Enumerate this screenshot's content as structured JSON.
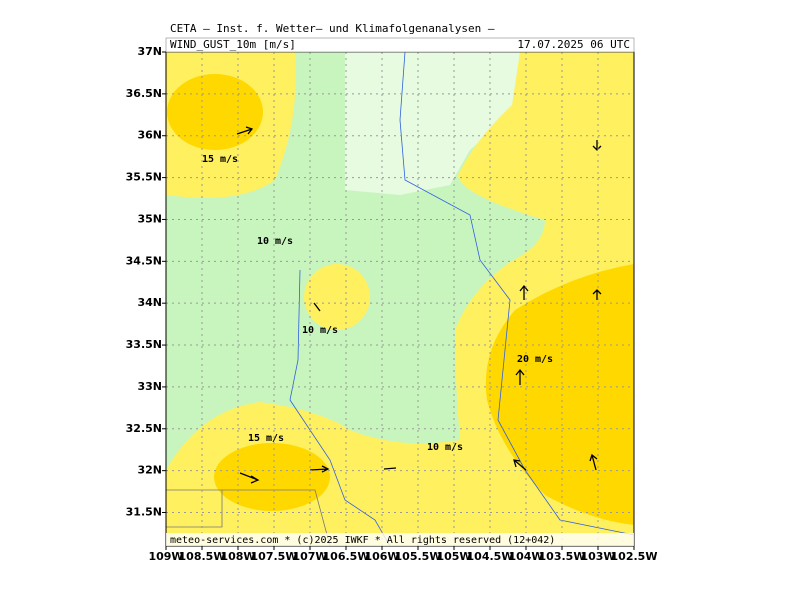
{
  "header": {
    "title": "CETA — Inst. f. Wetter— und Klimafolgenanalysen —",
    "variable": "WIND_GUST_10m [m/s]",
    "datetime": "17.07.2025 06 UTC"
  },
  "map": {
    "xlim": [
      -109,
      -102.5
    ],
    "ylim": [
      31.1,
      37
    ],
    "xticks": [
      {
        "value": -109,
        "label": "109W"
      },
      {
        "value": -108.5,
        "label": "108.5W"
      },
      {
        "value": -108,
        "label": "108W"
      },
      {
        "value": -107.5,
        "label": "107.5W"
      },
      {
        "value": -107,
        "label": "107W"
      },
      {
        "value": -106.5,
        "label": "106.5W"
      },
      {
        "value": -106,
        "label": "106W"
      },
      {
        "value": -105.5,
        "label": "105.5W"
      },
      {
        "value": -105,
        "label": "105W"
      },
      {
        "value": -104.5,
        "label": "104.5W"
      },
      {
        "value": -104,
        "label": "104W"
      },
      {
        "value": -103.5,
        "label": "103.5W"
      },
      {
        "value": -103,
        "label": "103W"
      },
      {
        "value": -102.5,
        "label": "102.5W"
      }
    ],
    "yticks": [
      {
        "value": 37,
        "label": "37N"
      },
      {
        "value": 36.5,
        "label": "36.5N"
      },
      {
        "value": 36,
        "label": "36N"
      },
      {
        "value": 35.5,
        "label": "35.5N"
      },
      {
        "value": 35,
        "label": "35N"
      },
      {
        "value": 34.5,
        "label": "34.5N"
      },
      {
        "value": 34,
        "label": "34N"
      },
      {
        "value": 33.5,
        "label": "33.5N"
      },
      {
        "value": 33,
        "label": "33N"
      },
      {
        "value": 32.5,
        "label": "32.5N"
      },
      {
        "value": 32,
        "label": "32N"
      },
      {
        "value": 31.5,
        "label": "31.5N"
      }
    ],
    "contour_labels": [
      "15 m/s",
      "10 m/s",
      "10 m/s",
      "15 m/s",
      "10 m/s",
      "20 m/s"
    ]
  },
  "footer": "meteo-services.com * (c)2025 IWKF * All rights reserved (12+042)"
}
